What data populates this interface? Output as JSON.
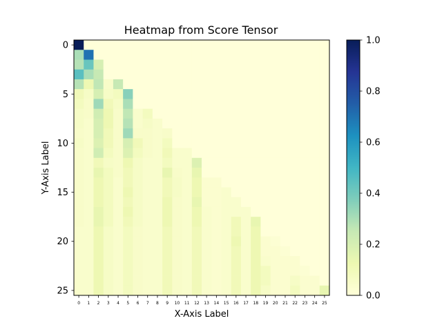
{
  "chart_data": {
    "type": "heatmap",
    "title": "Heatmap from Score Tensor",
    "xlabel": "X-Axis Label",
    "ylabel": "Y-Axis Label",
    "x_categories": [
      "0",
      "1",
      "2",
      "3",
      "4",
      "5",
      "6",
      "7",
      "8",
      "9",
      "10",
      "11",
      "12",
      "13",
      "14",
      "15",
      "16",
      "17",
      "18",
      "19",
      "20",
      "21",
      "22",
      "23",
      "24",
      "25"
    ],
    "y_ticks": [
      0,
      5,
      10,
      15,
      20,
      25
    ],
    "colormap": "YlGnBu",
    "value_range": [
      0,
      1
    ],
    "colorbar_ticks": [
      "0.0",
      "0.2",
      "0.4",
      "0.6",
      "0.8",
      "1.0"
    ],
    "values": [
      [
        1.0,
        0,
        0,
        0,
        0,
        0,
        0,
        0,
        0,
        0,
        0,
        0,
        0,
        0,
        0,
        0,
        0,
        0,
        0,
        0,
        0,
        0,
        0,
        0,
        0,
        0
      ],
      [
        0.3,
        0.7,
        0,
        0,
        0,
        0,
        0,
        0,
        0,
        0,
        0,
        0,
        0,
        0,
        0,
        0,
        0,
        0,
        0,
        0,
        0,
        0,
        0,
        0,
        0,
        0
      ],
      [
        0.28,
        0.42,
        0.2,
        0,
        0,
        0,
        0,
        0,
        0,
        0,
        0,
        0,
        0,
        0,
        0,
        0,
        0,
        0,
        0,
        0,
        0,
        0,
        0,
        0,
        0,
        0
      ],
      [
        0.45,
        0.3,
        0.25,
        0,
        0,
        0,
        0,
        0,
        0,
        0,
        0,
        0,
        0,
        0,
        0,
        0,
        0,
        0,
        0,
        0,
        0,
        0,
        0,
        0,
        0,
        0
      ],
      [
        0.28,
        0.12,
        0.26,
        0.05,
        0.25,
        0,
        0,
        0,
        0,
        0,
        0,
        0,
        0,
        0,
        0,
        0,
        0,
        0,
        0,
        0,
        0,
        0,
        0,
        0,
        0,
        0
      ],
      [
        0.1,
        0.06,
        0.2,
        0.06,
        0.08,
        0.36,
        0,
        0,
        0,
        0,
        0,
        0,
        0,
        0,
        0,
        0,
        0,
        0,
        0,
        0,
        0,
        0,
        0,
        0,
        0,
        0
      ],
      [
        0.08,
        0.05,
        0.32,
        0.1,
        0.06,
        0.3,
        0,
        0,
        0,
        0,
        0,
        0,
        0,
        0,
        0,
        0,
        0,
        0,
        0,
        0,
        0,
        0,
        0,
        0,
        0,
        0
      ],
      [
        0.06,
        0.05,
        0.22,
        0.12,
        0.05,
        0.26,
        0.04,
        0.08,
        0,
        0,
        0,
        0,
        0,
        0,
        0,
        0,
        0,
        0,
        0,
        0,
        0,
        0,
        0,
        0,
        0,
        0
      ],
      [
        0.06,
        0.04,
        0.2,
        0.12,
        0.05,
        0.28,
        0.04,
        0.06,
        0.04,
        0,
        0,
        0,
        0,
        0,
        0,
        0,
        0,
        0,
        0,
        0,
        0,
        0,
        0,
        0,
        0,
        0
      ],
      [
        0.05,
        0.04,
        0.2,
        0.1,
        0.05,
        0.32,
        0.05,
        0.05,
        0.04,
        0.05,
        0,
        0,
        0,
        0,
        0,
        0,
        0,
        0,
        0,
        0,
        0,
        0,
        0,
        0,
        0,
        0
      ],
      [
        0.06,
        0.04,
        0.18,
        0.1,
        0.05,
        0.2,
        0.1,
        0.05,
        0.04,
        0.08,
        0,
        0,
        0,
        0,
        0,
        0,
        0,
        0,
        0,
        0,
        0,
        0,
        0,
        0,
        0,
        0
      ],
      [
        0.05,
        0.04,
        0.22,
        0.08,
        0.05,
        0.18,
        0.08,
        0.05,
        0.04,
        0.1,
        0.04,
        0.04,
        0,
        0,
        0,
        0,
        0,
        0,
        0,
        0,
        0,
        0,
        0,
        0,
        0,
        0
      ],
      [
        0.05,
        0.04,
        0.1,
        0.06,
        0.05,
        0.12,
        0.06,
        0.04,
        0.04,
        0.08,
        0.04,
        0.04,
        0.18,
        0,
        0,
        0,
        0,
        0,
        0,
        0,
        0,
        0,
        0,
        0,
        0,
        0
      ],
      [
        0.05,
        0.04,
        0.14,
        0.08,
        0.05,
        0.1,
        0.06,
        0.04,
        0.04,
        0.14,
        0.05,
        0.04,
        0.14,
        0,
        0,
        0,
        0,
        0,
        0,
        0,
        0,
        0,
        0,
        0,
        0,
        0
      ],
      [
        0.05,
        0.04,
        0.12,
        0.08,
        0.04,
        0.1,
        0.06,
        0.04,
        0.04,
        0.1,
        0.06,
        0.04,
        0.12,
        0.03,
        0.03,
        0,
        0,
        0,
        0,
        0,
        0,
        0,
        0,
        0,
        0,
        0
      ],
      [
        0.05,
        0.04,
        0.12,
        0.08,
        0.04,
        0.12,
        0.06,
        0.04,
        0.04,
        0.1,
        0.06,
        0.04,
        0.12,
        0.03,
        0.03,
        0.04,
        0,
        0,
        0,
        0,
        0,
        0,
        0,
        0,
        0,
        0
      ],
      [
        0.05,
        0.04,
        0.12,
        0.08,
        0.04,
        0.1,
        0.06,
        0.04,
        0.04,
        0.12,
        0.05,
        0.04,
        0.14,
        0.03,
        0.03,
        0.04,
        0.04,
        0,
        0,
        0,
        0,
        0,
        0,
        0,
        0,
        0
      ],
      [
        0.05,
        0.04,
        0.14,
        0.08,
        0.04,
        0.12,
        0.06,
        0.04,
        0.04,
        0.12,
        0.05,
        0.04,
        0.12,
        0.04,
        0.03,
        0.04,
        0.04,
        0.04,
        0,
        0,
        0,
        0,
        0,
        0,
        0,
        0
      ],
      [
        0.05,
        0.04,
        0.14,
        0.08,
        0.04,
        0.1,
        0.06,
        0.04,
        0.04,
        0.12,
        0.05,
        0.04,
        0.12,
        0.04,
        0.03,
        0.04,
        0.1,
        0.04,
        0.14,
        0,
        0,
        0,
        0,
        0,
        0,
        0
      ],
      [
        0.04,
        0.04,
        0.12,
        0.06,
        0.04,
        0.08,
        0.05,
        0.04,
        0.04,
        0.1,
        0.05,
        0.04,
        0.1,
        0.04,
        0.03,
        0.04,
        0.1,
        0.04,
        0.12,
        0,
        0,
        0,
        0,
        0,
        0,
        0
      ],
      [
        0.04,
        0.04,
        0.12,
        0.06,
        0.04,
        0.08,
        0.05,
        0.04,
        0.04,
        0.1,
        0.05,
        0.04,
        0.1,
        0.04,
        0.03,
        0.04,
        0.12,
        0.04,
        0.12,
        0.03,
        0.02,
        0,
        0,
        0,
        0,
        0
      ],
      [
        0.04,
        0.04,
        0.12,
        0.06,
        0.04,
        0.08,
        0.05,
        0.04,
        0.04,
        0.1,
        0.05,
        0.04,
        0.1,
        0.04,
        0.03,
        0.04,
        0.1,
        0.04,
        0.12,
        0.03,
        0.03,
        0.02,
        0,
        0,
        0,
        0
      ],
      [
        0.04,
        0.04,
        0.12,
        0.06,
        0.04,
        0.08,
        0.05,
        0.04,
        0.04,
        0.1,
        0.05,
        0.04,
        0.1,
        0.04,
        0.03,
        0.04,
        0.1,
        0.04,
        0.12,
        0.04,
        0.03,
        0.03,
        0.03,
        0,
        0,
        0
      ],
      [
        0.04,
        0.04,
        0.12,
        0.06,
        0.04,
        0.08,
        0.05,
        0.04,
        0.04,
        0.1,
        0.05,
        0.04,
        0.1,
        0.04,
        0.03,
        0.04,
        0.1,
        0.04,
        0.12,
        0.08,
        0.03,
        0.03,
        0.03,
        0.02,
        0,
        0
      ],
      [
        0.04,
        0.04,
        0.12,
        0.06,
        0.04,
        0.08,
        0.05,
        0.04,
        0.04,
        0.1,
        0.05,
        0.04,
        0.1,
        0.04,
        0.03,
        0.04,
        0.1,
        0.04,
        0.12,
        0.08,
        0.03,
        0.03,
        0.06,
        0.03,
        0.03,
        0
      ],
      [
        0.04,
        0.04,
        0.12,
        0.06,
        0.04,
        0.08,
        0.05,
        0.04,
        0.04,
        0.1,
        0.05,
        0.04,
        0.1,
        0.04,
        0.03,
        0.04,
        0.1,
        0.04,
        0.12,
        0.06,
        0.03,
        0.03,
        0.08,
        0.03,
        0.03,
        0.14
      ]
    ]
  }
}
